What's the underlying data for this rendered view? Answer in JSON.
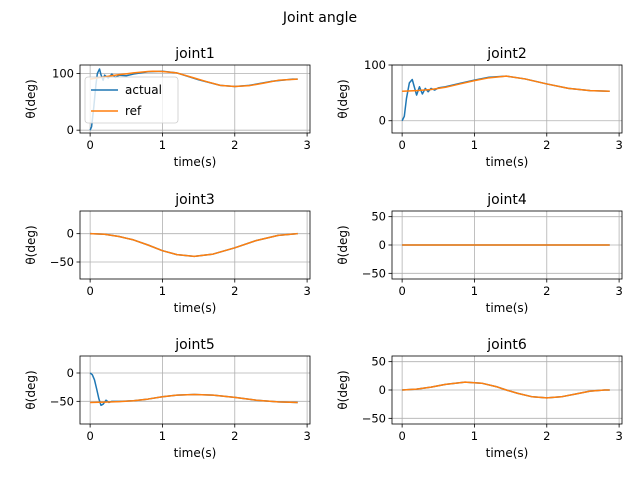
{
  "figure": {
    "title": "Joint angle"
  },
  "colors": {
    "actual": "#1f77b4",
    "ref": "#ff7f0e"
  },
  "chart_data": [
    {
      "type": "line",
      "title": "joint1",
      "xlabel": "time(s)",
      "ylabel": "θ(deg)",
      "xlim": [
        -0.14,
        3.04
      ],
      "ylim": [
        -5,
        115
      ],
      "xticks": [
        0,
        1,
        2,
        3
      ],
      "yticks": [
        0,
        100
      ],
      "grid": true,
      "legend": {
        "position": "upper-left",
        "entries": [
          "actual",
          "ref"
        ]
      },
      "series": [
        {
          "name": "actual",
          "color": "#1f77b4",
          "x": [
            0,
            0.02,
            0.05,
            0.08,
            0.1,
            0.13,
            0.15,
            0.18,
            0.2,
            0.25,
            0.3,
            0.35,
            0.4,
            0.5,
            0.6,
            0.8,
            1.0,
            1.2,
            1.5,
            1.8,
            2.0,
            2.2,
            2.5,
            2.8,
            2.87
          ],
          "y": [
            0,
            6,
            40,
            80,
            100,
            108,
            98,
            88,
            97,
            92,
            99,
            93,
            97,
            96,
            99,
            103,
            104,
            101,
            89,
            79,
            77,
            79,
            86,
            90,
            90
          ]
        },
        {
          "name": "ref",
          "color": "#ff7f0e",
          "x": [
            0,
            0.2,
            0.4,
            0.6,
            0.8,
            0.87,
            1.0,
            1.2,
            1.44,
            1.6,
            1.8,
            2.0,
            2.2,
            2.4,
            2.6,
            2.87
          ],
          "y": [
            90,
            94,
            98,
            101,
            103.5,
            104,
            103.5,
            101,
            92,
            86,
            79,
            77,
            78.5,
            83,
            88,
            90
          ]
        }
      ]
    },
    {
      "type": "line",
      "title": "joint2",
      "xlabel": "time(s)",
      "ylabel": "θ(deg)",
      "xlim": [
        -0.14,
        3.04
      ],
      "ylim": [
        -22,
        100
      ],
      "xticks": [
        0,
        1,
        2,
        3
      ],
      "yticks": [
        0,
        100
      ],
      "grid": true,
      "series": [
        {
          "name": "actual",
          "color": "#1f77b4",
          "x": [
            0,
            0.03,
            0.06,
            0.1,
            0.14,
            0.17,
            0.2,
            0.24,
            0.28,
            0.32,
            0.36,
            0.4,
            0.45,
            0.5,
            0.6,
            0.8,
            1.0,
            1.2,
            1.44,
            1.7,
            2.0,
            2.3,
            2.6,
            2.87
          ],
          "y": [
            0,
            8,
            40,
            68,
            74,
            60,
            46,
            61,
            48,
            58,
            52,
            58,
            55,
            59,
            61,
            67,
            73,
            78,
            80,
            75,
            66,
            58,
            54,
            53
          ]
        },
        {
          "name": "ref",
          "color": "#ff7f0e",
          "x": [
            0,
            0.2,
            0.4,
            0.6,
            0.8,
            1.0,
            1.2,
            1.44,
            1.7,
            2.0,
            2.3,
            2.6,
            2.87
          ],
          "y": [
            53,
            54,
            56,
            60,
            66,
            72,
            77,
            80,
            75,
            66,
            58,
            54,
            53
          ]
        }
      ]
    },
    {
      "type": "line",
      "title": "joint3",
      "xlabel": "time(s)",
      "ylabel": "θ(deg)",
      "xlim": [
        -0.14,
        3.04
      ],
      "ylim": [
        -80,
        40
      ],
      "xticks": [
        0,
        1,
        2,
        3
      ],
      "yticks": [
        -50,
        0
      ],
      "grid": true,
      "series": [
        {
          "name": "actual",
          "color": "#1f77b4",
          "x": [
            0,
            0.2,
            0.4,
            0.6,
            0.8,
            1.0,
            1.2,
            1.44,
            1.7,
            2.0,
            2.3,
            2.6,
            2.87
          ],
          "y": [
            0,
            -1,
            -5,
            -11,
            -20,
            -30,
            -37,
            -40,
            -36,
            -25,
            -12,
            -3,
            0
          ]
        },
        {
          "name": "ref",
          "color": "#ff7f0e",
          "x": [
            0,
            0.2,
            0.4,
            0.6,
            0.8,
            1.0,
            1.2,
            1.44,
            1.7,
            2.0,
            2.3,
            2.6,
            2.87
          ],
          "y": [
            0,
            -1,
            -5,
            -11,
            -20,
            -30,
            -37,
            -40,
            -36,
            -25,
            -12,
            -3,
            0
          ]
        }
      ]
    },
    {
      "type": "line",
      "title": "joint4",
      "xlabel": "time(s)",
      "ylabel": "θ(deg)",
      "xlim": [
        -0.14,
        3.04
      ],
      "ylim": [
        -60,
        60
      ],
      "xticks": [
        0,
        1,
        2,
        3
      ],
      "yticks": [
        -50,
        0,
        50
      ],
      "grid": true,
      "series": [
        {
          "name": "actual",
          "color": "#1f77b4",
          "x": [
            0,
            2.87
          ],
          "y": [
            0,
            0
          ]
        },
        {
          "name": "ref",
          "color": "#ff7f0e",
          "x": [
            0,
            2.87
          ],
          "y": [
            0,
            0
          ]
        }
      ]
    },
    {
      "type": "line",
      "title": "joint5",
      "xlabel": "time(s)",
      "ylabel": "θ(deg)",
      "xlim": [
        -0.14,
        3.04
      ],
      "ylim": [
        -90,
        30
      ],
      "xticks": [
        0,
        1,
        2,
        3
      ],
      "yticks": [
        -50,
        0
      ],
      "grid": true,
      "series": [
        {
          "name": "actual",
          "color": "#1f77b4",
          "x": [
            0,
            0.03,
            0.06,
            0.09,
            0.12,
            0.15,
            0.18,
            0.22,
            0.26,
            0.3,
            0.4,
            0.6,
            0.8,
            1.0,
            1.2,
            1.44,
            1.7,
            2.0,
            2.3,
            2.6,
            2.87
          ],
          "y": [
            0,
            -3,
            -12,
            -28,
            -45,
            -57,
            -55,
            -48,
            -52,
            -50,
            -50,
            -49,
            -46,
            -42,
            -39,
            -38,
            -39,
            -43,
            -48,
            -51,
            -52
          ]
        },
        {
          "name": "ref",
          "color": "#ff7f0e",
          "x": [
            0,
            0.2,
            0.4,
            0.6,
            0.8,
            1.0,
            1.2,
            1.44,
            1.7,
            2.0,
            2.3,
            2.6,
            2.87
          ],
          "y": [
            -52,
            -51.5,
            -50.5,
            -49,
            -46,
            -42,
            -39,
            -38,
            -39,
            -43,
            -48,
            -51,
            -52
          ]
        }
      ]
    },
    {
      "type": "line",
      "title": "joint6",
      "xlabel": "time(s)",
      "ylabel": "θ(deg)",
      "xlim": [
        -0.14,
        3.04
      ],
      "ylim": [
        -60,
        60
      ],
      "xticks": [
        0,
        1,
        2,
        3
      ],
      "yticks": [
        -50,
        0,
        50
      ],
      "grid": true,
      "series": [
        {
          "name": "actual",
          "color": "#1f77b4",
          "x": [
            0,
            0.2,
            0.4,
            0.6,
            0.87,
            1.1,
            1.3,
            1.44,
            1.6,
            1.8,
            2.0,
            2.2,
            2.4,
            2.6,
            2.8,
            2.87
          ],
          "y": [
            0,
            1.5,
            5,
            10,
            14,
            12,
            6,
            0,
            -6,
            -12,
            -14,
            -12,
            -7,
            -2,
            0,
            0
          ]
        },
        {
          "name": "ref",
          "color": "#ff7f0e",
          "x": [
            0,
            0.2,
            0.4,
            0.6,
            0.87,
            1.1,
            1.3,
            1.44,
            1.6,
            1.8,
            2.0,
            2.2,
            2.4,
            2.6,
            2.8,
            2.87
          ],
          "y": [
            0,
            1.5,
            5,
            10,
            14,
            12,
            6,
            0,
            -6,
            -12,
            -14,
            -12,
            -7,
            -2,
            0,
            0
          ]
        }
      ]
    }
  ]
}
